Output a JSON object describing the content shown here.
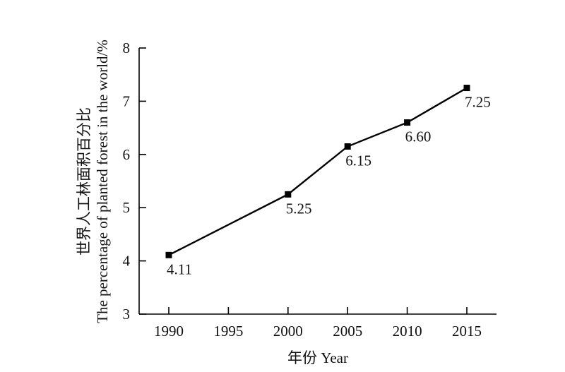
{
  "chart_data": {
    "type": "line",
    "x": [
      1990,
      2000,
      2005,
      2010,
      2015
    ],
    "values": [
      4.11,
      5.25,
      6.15,
      6.6,
      7.25
    ],
    "data_labels": [
      "4.11",
      "5.25",
      "6.15",
      "6.60",
      "7.25"
    ],
    "x_ticks": [
      "1990",
      "1995",
      "2000",
      "2005",
      "2010",
      "2015"
    ],
    "x_tick_values": [
      1990,
      1995,
      2000,
      2005,
      2010,
      2015
    ],
    "y_ticks": [
      "3",
      "4",
      "5",
      "6",
      "7",
      "8"
    ],
    "y_tick_values": [
      3,
      4,
      5,
      6,
      7,
      8
    ],
    "xlim": [
      1990,
      2015
    ],
    "ylim": [
      3,
      8
    ],
    "xlabel": "年份 Year",
    "ylabel_line1": "世界人工林面积百分比",
    "ylabel_line2": "The percentage of planted forest in the world/%",
    "grid": false,
    "marker": "square",
    "line_color": "#000000"
  }
}
